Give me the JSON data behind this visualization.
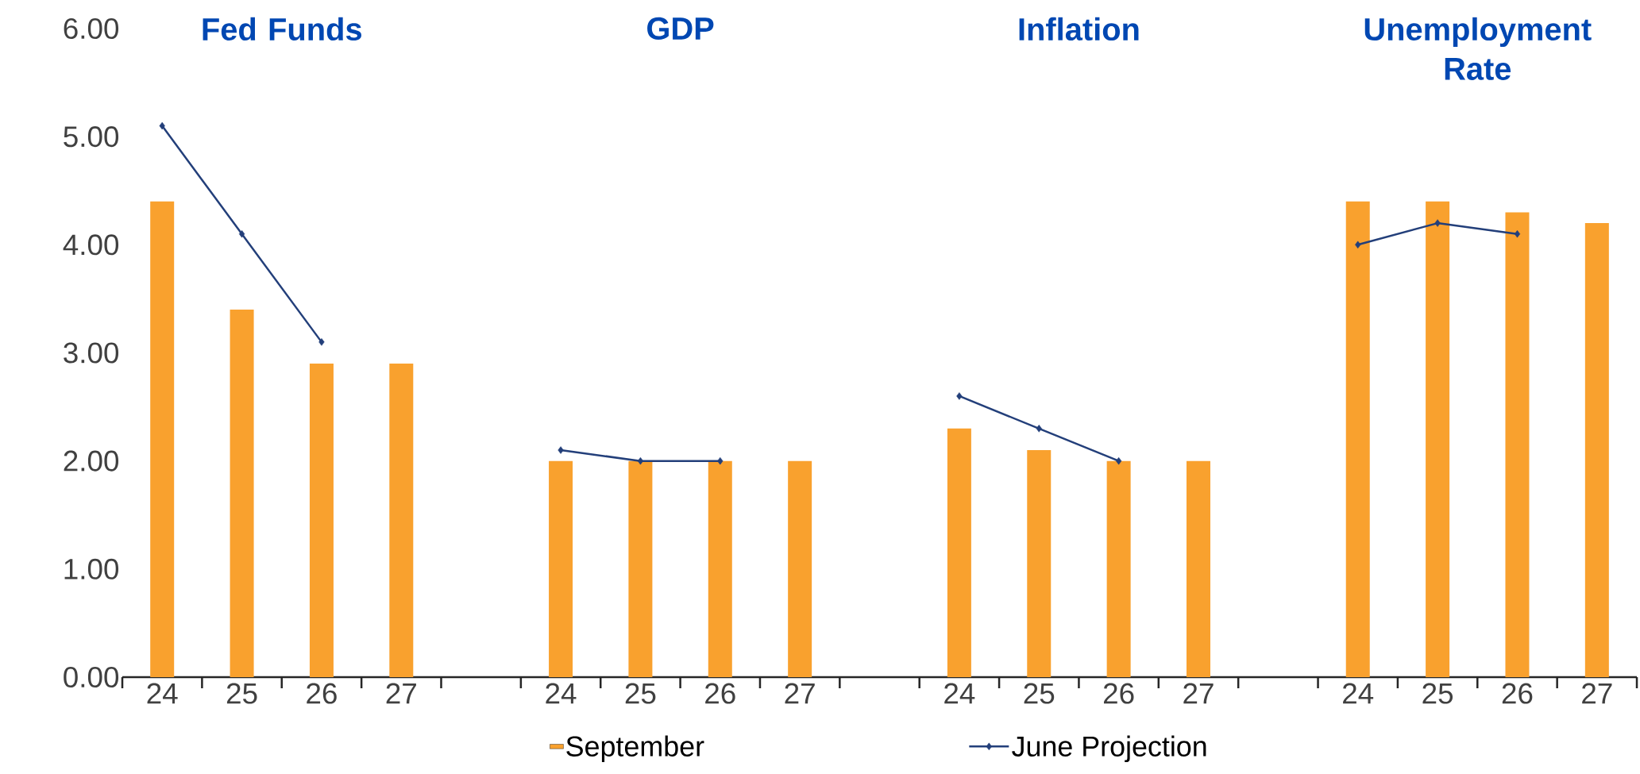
{
  "chart_data": {
    "type": "bar",
    "categories": [
      "24",
      "25",
      "26",
      "27",
      null,
      "24",
      "25",
      "26",
      "27",
      null,
      "24",
      "25",
      "26",
      "27",
      null,
      "24",
      "25",
      "26",
      "27"
    ],
    "series": [
      {
        "name": "September",
        "color": "#f9a12e",
        "values": [
          4.4,
          3.4,
          2.9,
          2.9,
          null,
          2.0,
          2.0,
          2.0,
          2.0,
          null,
          2.3,
          2.1,
          2.0,
          2.0,
          null,
          4.4,
          4.4,
          4.3,
          4.2
        ]
      },
      {
        "name": "June Projection",
        "type": "line",
        "color": "#233f7a",
        "marker": "diamond",
        "values": [
          5.1,
          4.1,
          3.1,
          null,
          null,
          2.1,
          2.0,
          2.0,
          null,
          null,
          2.6,
          2.3,
          2.0,
          null,
          null,
          4.0,
          4.2,
          4.1,
          null
        ]
      }
    ],
    "annotations": [
      "Fed Funds",
      "GDP",
      "Inflation",
      "Unemployment Rate"
    ],
    "ylim": [
      0,
      6
    ],
    "yticks": [
      {
        "value": 0,
        "label": "0.00"
      },
      {
        "value": 1,
        "label": "1.00"
      },
      {
        "value": 2,
        "label": "2.00"
      },
      {
        "value": 3,
        "label": "3.00"
      },
      {
        "value": 4,
        "label": "4.00"
      },
      {
        "value": 5,
        "label": "5.00"
      },
      {
        "value": 6,
        "label": "6.00"
      }
    ],
    "legend": "bottom"
  }
}
